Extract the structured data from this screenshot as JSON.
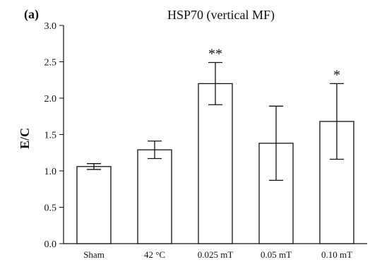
{
  "chart_data": {
    "type": "bar",
    "panel_label": "(a)",
    "title": "HSP70 (vertical MF)",
    "xlabel": "",
    "ylabel": "E/C",
    "ylim": [
      0,
      3.0
    ],
    "yticks": [
      "0.0",
      "0.5",
      "1.0",
      "1.5",
      "2.0",
      "2.5",
      "3.0"
    ],
    "categories": [
      "Sham",
      "42 °C",
      "0.025 mT",
      "0.05 mT",
      "0.10 mT"
    ],
    "values": [
      1.06,
      1.29,
      2.2,
      1.38,
      1.68
    ],
    "error": [
      0.04,
      0.12,
      0.29,
      0.51,
      0.52
    ],
    "annotations": [
      "",
      "",
      "**",
      "",
      "*"
    ],
    "colors": {
      "bar_fill": "#ffffff",
      "stroke": "#111111"
    }
  }
}
